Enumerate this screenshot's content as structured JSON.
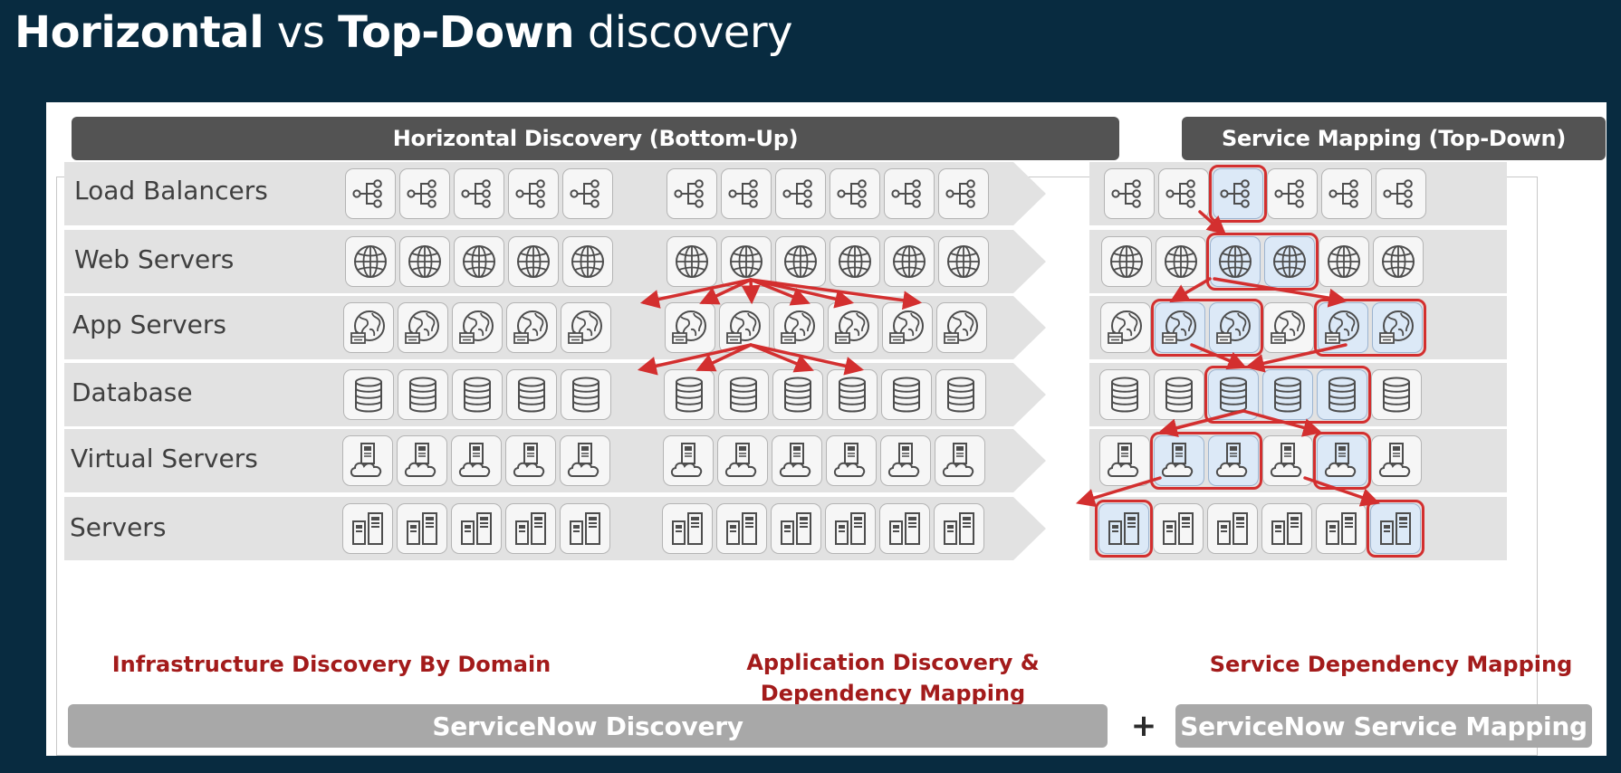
{
  "title": {
    "part1": "Horizontal",
    "part2": " vs ",
    "part3": "Top-Down",
    "part4": " discovery"
  },
  "headers": {
    "left": "Horizontal Discovery (Bottom-Up)",
    "right": "Service Mapping (Top-Down)"
  },
  "rows": [
    {
      "label": "Load Balancers",
      "icon": "load-balancer-icon"
    },
    {
      "label": "Web Servers",
      "icon": "web-server-icon"
    },
    {
      "label": "App Servers",
      "icon": "app-server-icon"
    },
    {
      "label": "Database",
      "icon": "database-icon"
    },
    {
      "label": "Virtual Servers",
      "icon": "virtual-server-icon"
    },
    {
      "label": "Servers",
      "icon": "server-icon"
    }
  ],
  "captions": {
    "infra": "Infrastructure Discovery By Domain",
    "app_line1": "Application Discovery &",
    "app_line2": "Dependency Mapping",
    "service": "Service Dependency Mapping"
  },
  "bottom": {
    "left": "ServiceNow Discovery",
    "plus": "+",
    "right": "ServiceNow Service Mapping"
  },
  "colors": {
    "background": "#082b40",
    "band": "#e2e2e2",
    "header": "#535353",
    "highlight": "#d32f2f",
    "caption": "#a31b1b",
    "footer": "#a8a8a8"
  }
}
